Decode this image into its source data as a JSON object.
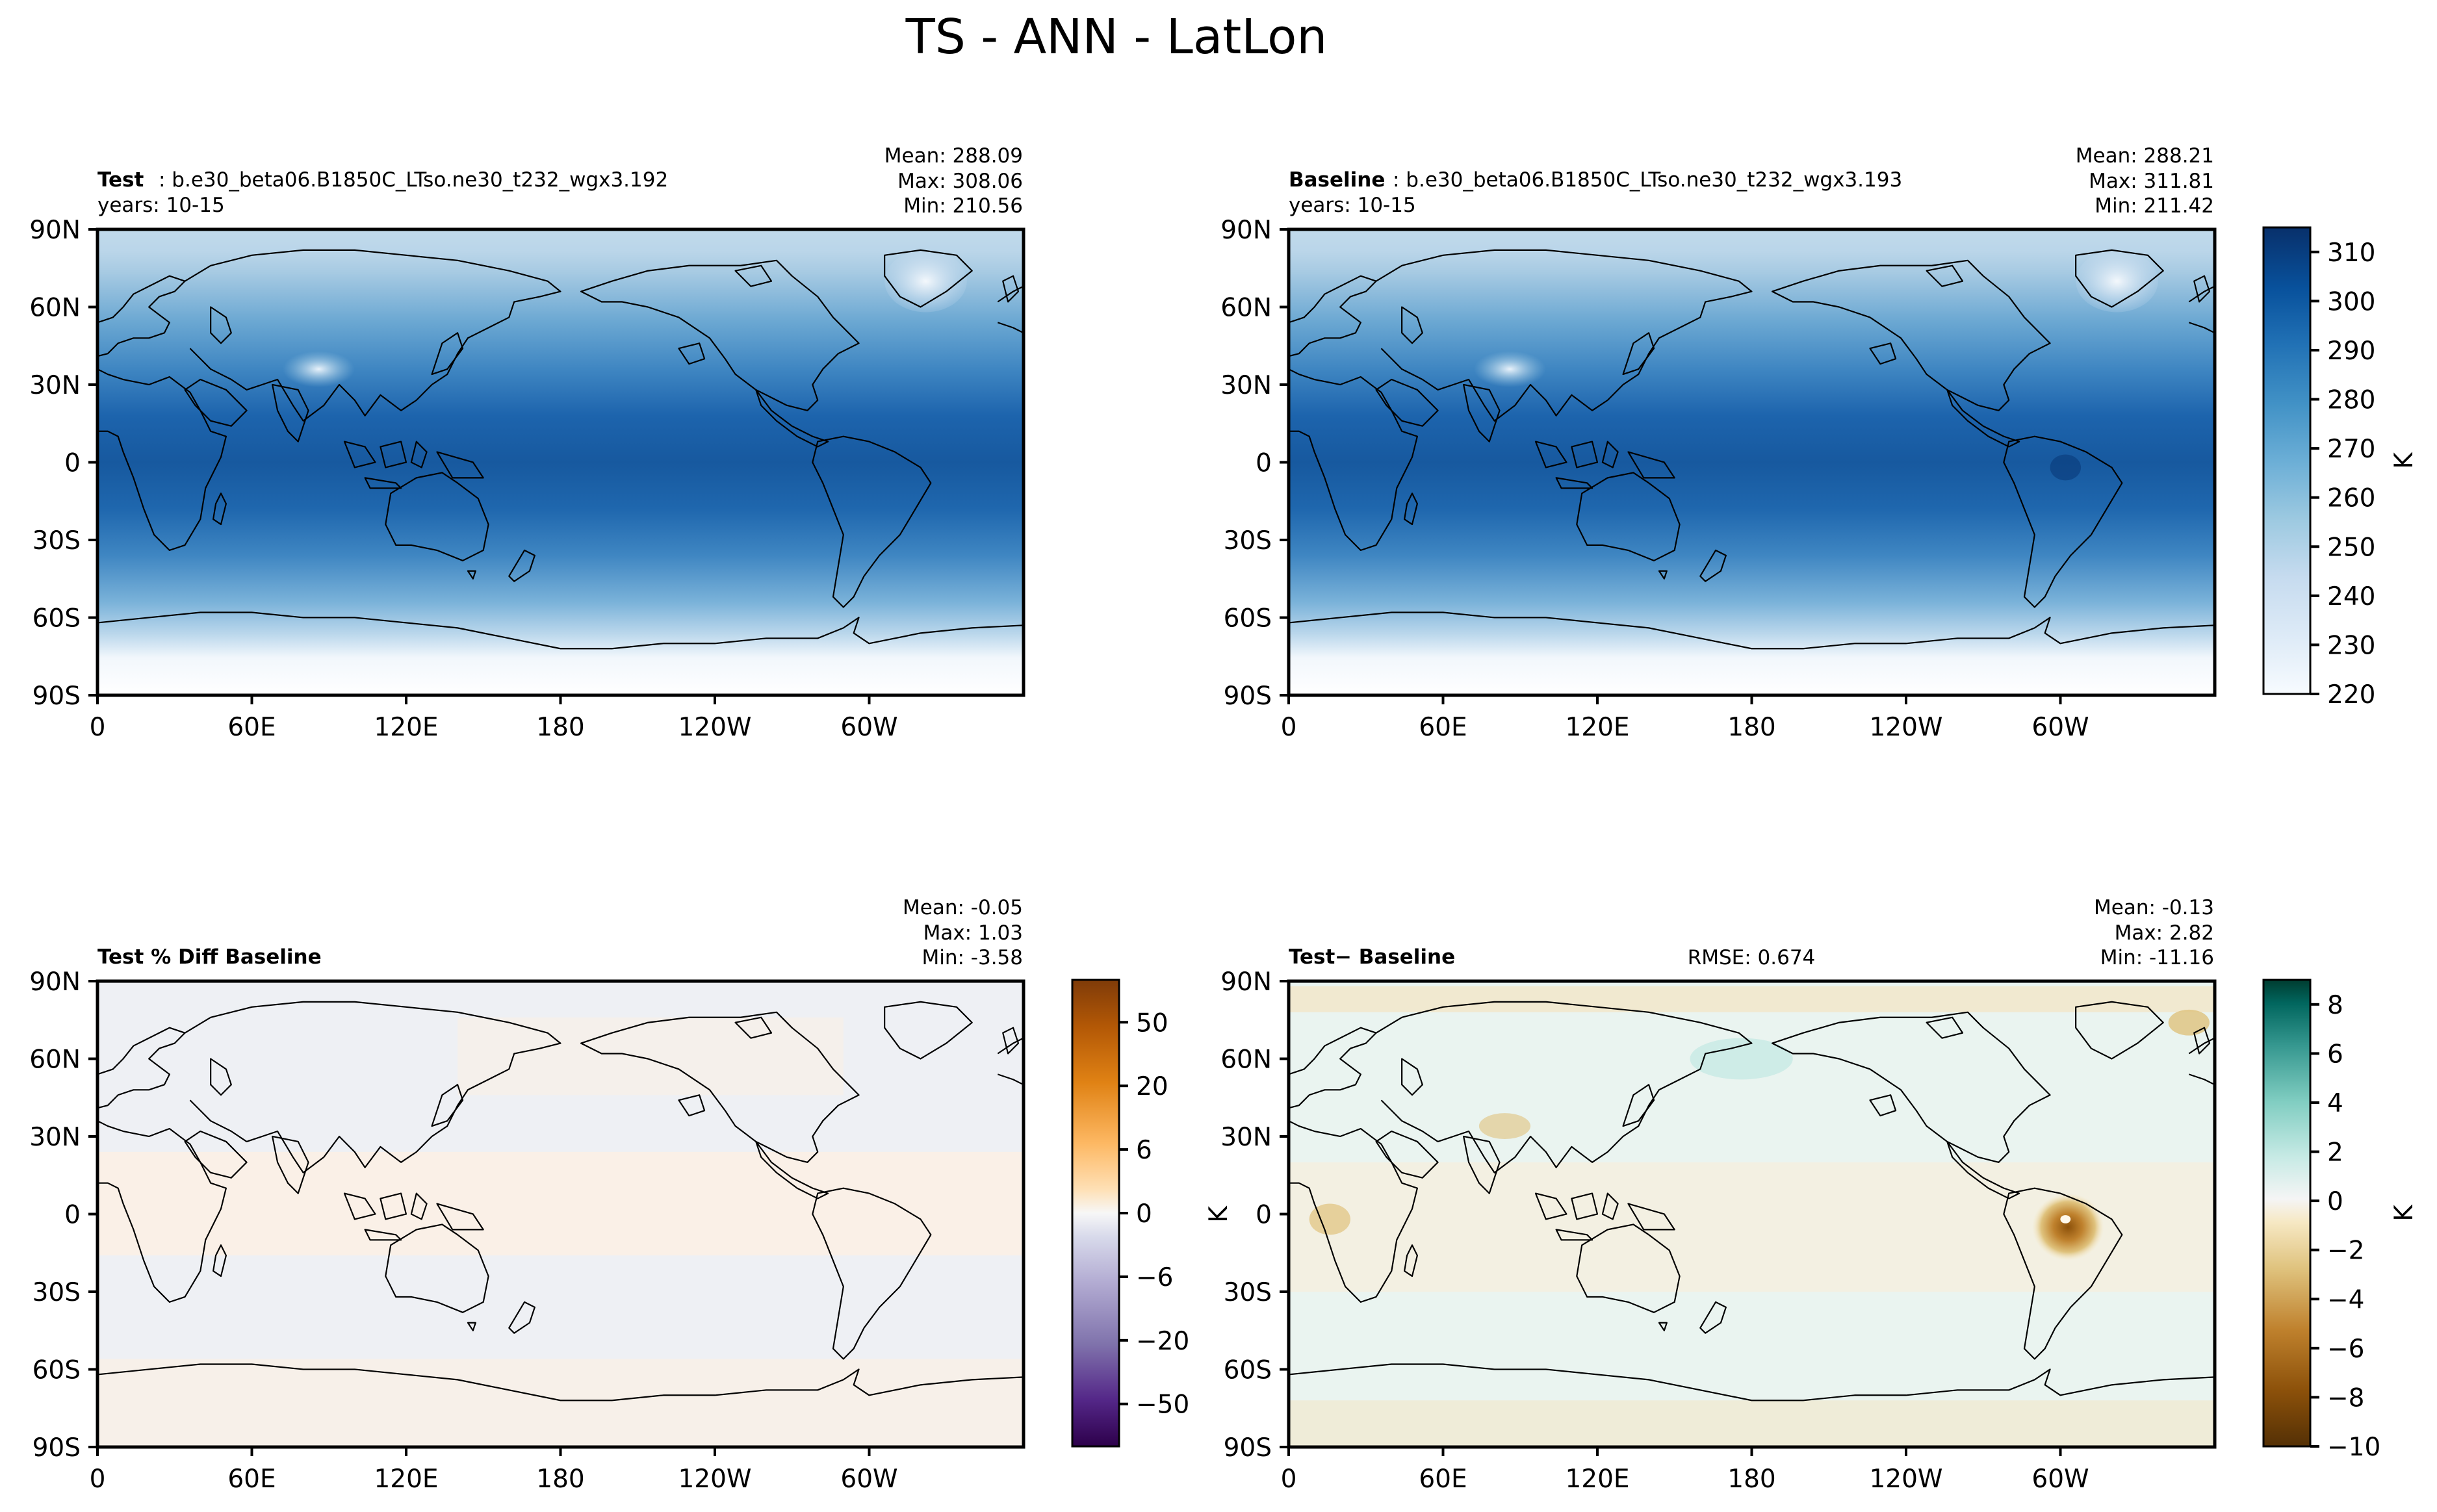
{
  "figure_title": "TS - ANN - LatLon",
  "colors": {
    "test_baseline_cmap": [
      "#f7fbff",
      "#deebf7",
      "#c6dbef",
      "#9ecae1",
      "#6baed6",
      "#4292c6",
      "#2171b5",
      "#08519c",
      "#08306b"
    ],
    "pct_diff_cmap": [
      "#3f007d",
      "#6a51a3",
      "#9e9ac8",
      "#dadaeb",
      "#f7f7f7",
      "#fee0b6",
      "#fdb863",
      "#e08214",
      "#b35806",
      "#7f3b08"
    ],
    "abs_diff_cmap": [
      "#543005",
      "#8c510a",
      "#bf812d",
      "#dfc27d",
      "#f6e8c3",
      "#f5f5f5",
      "#c7eae5",
      "#80cdc1",
      "#35978f",
      "#01665e",
      "#003c30"
    ],
    "coastline": "#000000",
    "ocean_test": "#2a6fb5",
    "land_dark": "#08519c",
    "pct_diff_fill": "#eef0f4",
    "abs_diff_fill": "#eef3ec"
  },
  "chart_data": [
    {
      "type": "heatmap",
      "name": "test",
      "label_bold": "Test",
      "label_rest": ": b.e30_beta06.B1850C_LTso.ne30_t232_wgx3.192",
      "years": "years: 10-15",
      "stats": [
        "Mean: 288.09",
        "Max: 308.06",
        "Min: 210.56"
      ],
      "x_ticks": [
        "0",
        "60E",
        "120E",
        "180",
        "120W",
        "60W"
      ],
      "y_ticks": [
        "90N",
        "60N",
        "30N",
        "0",
        "30S",
        "60S",
        "90S"
      ],
      "lat_range": [
        -90,
        90
      ],
      "lon_range": [
        0,
        360
      ],
      "variable": "TS",
      "units": "K",
      "cmap": "Blues"
    },
    {
      "type": "heatmap",
      "name": "baseline",
      "label_bold": "Baseline",
      "label_rest": ": b.e30_beta06.B1850C_LTso.ne30_t232_wgx3.193",
      "years": "years: 10-15",
      "stats": [
        "Mean: 288.21",
        "Max: 311.81",
        "Min: 211.42"
      ],
      "x_ticks": [
        "0",
        "60E",
        "120E",
        "180",
        "120W",
        "60W"
      ],
      "y_ticks": [
        "90N",
        "60N",
        "30N",
        "0",
        "30S",
        "60S",
        "90S"
      ],
      "lat_range": [
        -90,
        90
      ],
      "lon_range": [
        0,
        360
      ],
      "variable": "TS",
      "units": "K",
      "cmap": "Blues",
      "colorbar": {
        "ticks": [
          "310",
          "300",
          "290",
          "280",
          "270",
          "260",
          "250",
          "240",
          "230",
          "220"
        ],
        "range": [
          220,
          315
        ],
        "label": "K"
      }
    },
    {
      "type": "heatmap",
      "name": "pct_diff",
      "label_bold": "Test % Diff Baseline",
      "stats": [
        "Mean: -0.05",
        "Max:  1.03",
        "Min: -3.58"
      ],
      "x_ticks": [
        "0",
        "60E",
        "120E",
        "180",
        "120W",
        "60W"
      ],
      "y_ticks": [
        "90N",
        "60N",
        "30N",
        "0",
        "30S",
        "60S",
        "90S"
      ],
      "lat_range": [
        -90,
        90
      ],
      "lon_range": [
        0,
        360
      ],
      "cmap": "PuOr_r",
      "colorbar": {
        "ticks": [
          "50",
          "20",
          "6",
          "0",
          "−6",
          "−20",
          "−50"
        ],
        "levels": [
          -100,
          -75,
          -50,
          -40,
          -30,
          -20,
          -10,
          -8,
          -6,
          -4,
          -2,
          0,
          2,
          4,
          6,
          8,
          10,
          20,
          30,
          40,
          50,
          75,
          100
        ]
      }
    },
    {
      "type": "heatmap",
      "name": "abs_diff",
      "label_bold": "Test",
      "label_rest": " − Baseline",
      "rmse": "RMSE: 0.674",
      "stats": [
        "Mean: -0.13",
        "Max:  2.82",
        "Min: -11.16"
      ],
      "x_ticks": [
        "0",
        "60E",
        "120E",
        "180",
        "120W",
        "60W"
      ],
      "y_ticks": [
        "90N",
        "60N",
        "30N",
        "0",
        "30S",
        "60S",
        "90S"
      ],
      "lat_range": [
        -90,
        90
      ],
      "lon_range": [
        0,
        360
      ],
      "units": "K",
      "cmap": "BrBG",
      "colorbar": {
        "ticks": [
          "8",
          "6",
          "4",
          "2",
          "0",
          "−2",
          "−4",
          "−6",
          "−8",
          "−10"
        ],
        "range": [
          -10,
          9
        ],
        "label": "K"
      }
    }
  ]
}
